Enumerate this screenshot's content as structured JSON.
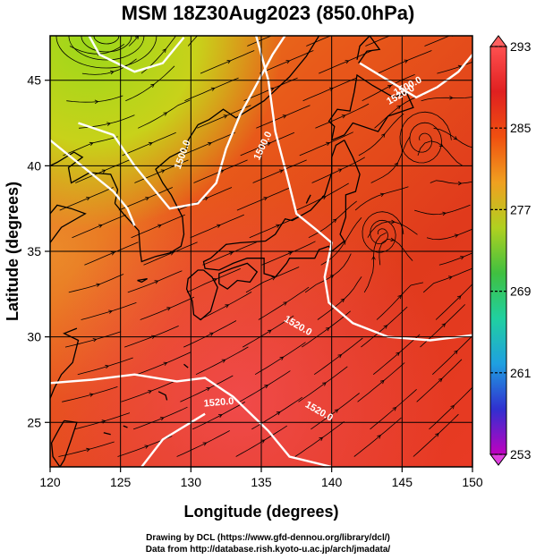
{
  "title": "MSM 18Z30Aug2023 (850.0hPa)",
  "x_axis": {
    "label": "Longitude (degrees)",
    "ticks": [
      120,
      125,
      130,
      135,
      140,
      145,
      150
    ],
    "range": [
      120,
      150
    ]
  },
  "y_axis": {
    "label": "Latitude  (degrees)",
    "ticks": [
      25,
      30,
      35,
      40,
      45
    ],
    "range": [
      22.4,
      47.6
    ]
  },
  "colorbar": {
    "ticks": [
      293,
      285,
      277,
      269,
      261,
      253
    ],
    "range": [
      253,
      293
    ],
    "colors": [
      "#c000c0",
      "#3030d0",
      "#1fa0e0",
      "#20d0a0",
      "#40c040",
      "#b0d020",
      "#f0a020",
      "#f05010",
      "#e02020",
      "#ff5050"
    ]
  },
  "contours": [
    {
      "label": "1500.0"
    },
    {
      "label": "1500.0"
    },
    {
      "label": "1520.0"
    },
    {
      "label": "1520.0"
    },
    {
      "label": "1500.0"
    },
    {
      "label": "1520.0"
    },
    {
      "label": "1520.0"
    }
  ],
  "credits": {
    "line1": "Drawing by DCL (https://www.gfd-dennou.org/library/dcl/)",
    "line2": "Data from http://database.rish.kyoto-u.ac.jp/arch/jmadata/"
  }
}
